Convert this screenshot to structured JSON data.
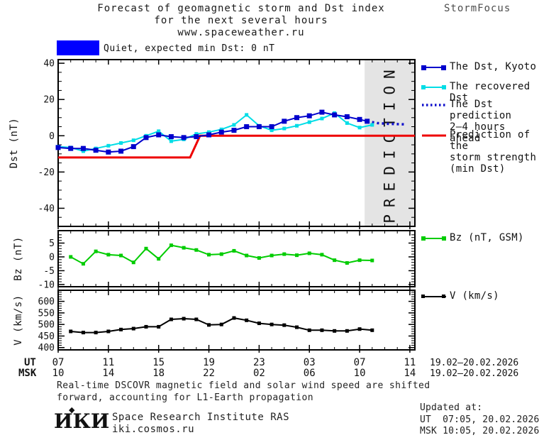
{
  "header": {
    "title_line1": "Forecast of geomagnetic storm and Dst index",
    "title_line2": "for the next several hours",
    "title_line3": "www.spaceweather.ru",
    "brand": "StormFocus"
  },
  "status_banner": {
    "label": "Quiet, expected min Dst: 0 nT"
  },
  "colors": {
    "quiet_box": "#0000ff",
    "kyoto": "#0000cc",
    "recovered": "#00dde6",
    "prediction_dotted": "#1111cc",
    "storm_red": "#ee0000",
    "bz_green": "#00cc00",
    "v_black": "#000000",
    "prediction_zone": "#e4e4e4",
    "watermark": "#c9c9c9"
  },
  "chart_data": [
    {
      "type": "line",
      "panel": "dst",
      "ylabel": "Dst (nT)",
      "ylim": [
        -50,
        42
      ],
      "yticks": [
        40,
        20,
        0,
        -20,
        -40
      ],
      "y_minor_step": 5,
      "x_hours_total": 28.4,
      "prediction_zone_hours": [
        24.4,
        28.4
      ],
      "watermark": "PREDICTION",
      "series": [
        {
          "name": "The Dst, Kyoto",
          "color_key": "kyoto",
          "markers": true,
          "marker_size": 7,
          "width": 2,
          "hours": [
            0,
            1,
            2,
            3,
            4,
            5,
            6,
            7,
            8,
            9,
            10,
            11,
            12,
            13,
            14,
            15,
            16,
            17,
            18,
            19,
            20,
            21,
            22,
            23,
            24,
            24.6
          ],
          "values": [
            -6.5,
            -7,
            -7,
            -8,
            -9,
            -8.5,
            -6,
            -1,
            0.5,
            -0.5,
            -1,
            -0.5,
            0.5,
            2,
            3,
            5,
            5,
            5,
            8,
            10,
            11,
            13,
            11.5,
            10.5,
            9,
            8
          ]
        },
        {
          "name": "The recovered Dst",
          "color_key": "recovered",
          "markers": true,
          "marker_size": 5,
          "width": 2,
          "hours": [
            0,
            1,
            2,
            3,
            4,
            5,
            6,
            7,
            8,
            9,
            10,
            11,
            12,
            13,
            14,
            15,
            16,
            17,
            18,
            19,
            20,
            21,
            22,
            23,
            24,
            25
          ],
          "values": [
            -6,
            -6.5,
            -8.5,
            -7,
            -5.5,
            -4,
            -2.5,
            0,
            2.5,
            -3,
            -2,
            1,
            2,
            3.5,
            6,
            11.5,
            5.5,
            3,
            4,
            5.5,
            7.5,
            9.5,
            12.5,
            7,
            4.5,
            6
          ]
        },
        {
          "name": "The Dst prediction 2-4 hours ahead",
          "color_key": "prediction_dotted",
          "style": "dotted",
          "markers": false,
          "width": 3.5,
          "hours": [
            24.6,
            25.4,
            26.2,
            27,
            27.6
          ],
          "values": [
            8,
            7,
            6.6,
            6.4,
            6.3
          ]
        },
        {
          "name": "Prediction of the storm strength (min Dst)",
          "color_key": "storm_red",
          "markers": false,
          "width": 3,
          "hours": [
            0,
            10.5,
            11.3,
            28.4
          ],
          "values": [
            -12,
            -12,
            0,
            0
          ]
        }
      ]
    },
    {
      "type": "line",
      "panel": "bz",
      "ylabel": "Bz (nT)",
      "ylim": [
        -10.8,
        9.5
      ],
      "yticks": [
        5,
        0,
        -5,
        -10
      ],
      "y_minor_step": 1,
      "series": [
        {
          "name": "Bz (nT, GSM)",
          "color_key": "bz_green",
          "markers": true,
          "marker_size": 5,
          "width": 2,
          "hours": [
            1,
            2,
            3,
            4,
            5,
            6,
            7,
            8,
            9,
            10,
            11,
            12,
            13,
            14,
            15,
            16,
            17,
            18,
            19,
            20,
            21,
            22,
            23,
            24,
            25
          ],
          "values": [
            0,
            -2.5,
            2,
            0.8,
            0.5,
            -2,
            3,
            -0.7,
            4.2,
            3.3,
            2.5,
            0.8,
            1,
            2.2,
            0.5,
            -0.4,
            0.5,
            1,
            0.6,
            1.3,
            0.8,
            -1.2,
            -2.2,
            -1.2,
            -1.3
          ]
        }
      ]
    },
    {
      "type": "line",
      "panel": "v",
      "ylabel": "V (km/s)",
      "ylim": [
        390,
        648
      ],
      "yticks": [
        600,
        550,
        500,
        450,
        400
      ],
      "y_minor_step": 10,
      "series": [
        {
          "name": "V (km/s)",
          "color_key": "v_black",
          "markers": true,
          "marker_size": 5,
          "width": 2,
          "hours": [
            1,
            2,
            3,
            4,
            5,
            6,
            7,
            8,
            9,
            10,
            11,
            12,
            13,
            14,
            15,
            16,
            17,
            18,
            19,
            20,
            21,
            22,
            23,
            24,
            25
          ],
          "values": [
            470,
            465,
            465,
            470,
            478,
            482,
            490,
            490,
            522,
            525,
            522,
            498,
            500,
            528,
            518,
            505,
            500,
            497,
            488,
            475,
            475,
            472,
            472,
            480,
            475
          ]
        }
      ]
    }
  ],
  "x_axis": {
    "ut_label": "UT",
    "msk_label": "MSK",
    "ut_ticks": [
      "07",
      "11",
      "15",
      "19",
      "23",
      "03",
      "07",
      "11"
    ],
    "msk_ticks": [
      "10",
      "14",
      "18",
      "22",
      "02",
      "06",
      "10",
      "14"
    ],
    "ut_date": "19.02–20.02.2026",
    "msk_date": "19.02–20.02.2026"
  },
  "legend": {
    "dst": [
      {
        "line1": "The Dst, Kyoto"
      },
      {
        "line1": "The recovered Dst"
      },
      {
        "line1": "The Dst prediction",
        "line2": "2–4 hours ahead"
      },
      {
        "line1": "Prediction of the",
        "line2": "storm strength",
        "line3": "(min Dst)"
      }
    ],
    "bz": {
      "line1": "Bz (nT, GSM)"
    },
    "v": {
      "line1": "V (km/s)"
    }
  },
  "footnote": {
    "line1": "Real-time DSCOVR magnetic field and solar wind speed are shifted",
    "line2": "forward, accounting for L1-Earth propagation"
  },
  "footer": {
    "logo": "ИКИ",
    "org": "Space Research Institute RAS",
    "site": "iki.cosmos.ru",
    "updated_label": "Updated at:",
    "updated_ut": "UT  07:05, 20.02.2026",
    "updated_msk": "MSK 10:05, 20.02.2026"
  }
}
